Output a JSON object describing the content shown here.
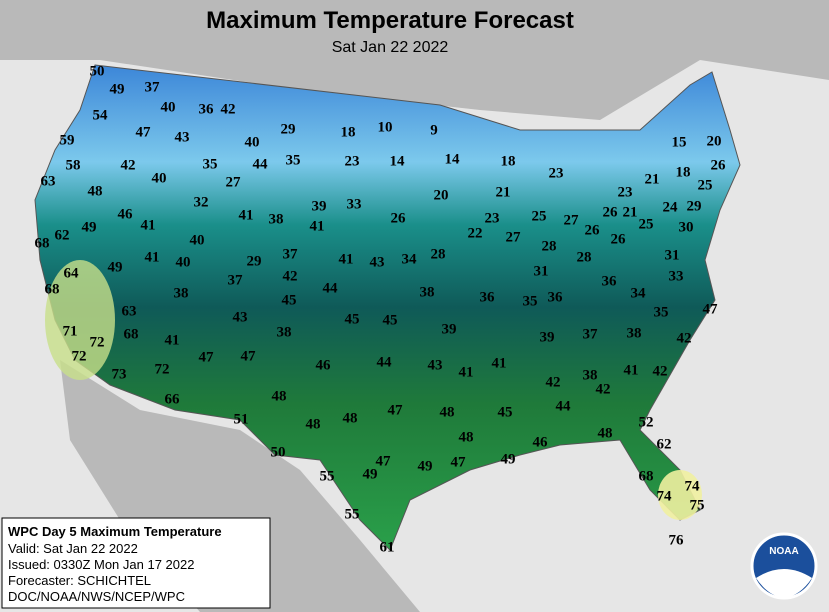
{
  "header": {
    "title": "Maximum Temperature Forecast",
    "subtitle": "Sat Jan 22 2022"
  },
  "temperatures": [
    50,
    49,
    37,
    54,
    40,
    36,
    42,
    47,
    43,
    29,
    18,
    10,
    9,
    40,
    59,
    58,
    42,
    35,
    44,
    35,
    23,
    14,
    14,
    18,
    23,
    15,
    20,
    63,
    40,
    27,
    21,
    18,
    26,
    25,
    48,
    32,
    20,
    21,
    23,
    46,
    41,
    41,
    38,
    39,
    33,
    26,
    23,
    25,
    27,
    26,
    21,
    25,
    24,
    29,
    49,
    41,
    30,
    62,
    68,
    40,
    22,
    27,
    26,
    26,
    28,
    29,
    37,
    41,
    43,
    34,
    28,
    28,
    31,
    49,
    41,
    40,
    64,
    42,
    37,
    31,
    36,
    33,
    68,
    38,
    44,
    38,
    36,
    35,
    36,
    34,
    45,
    63,
    43,
    45,
    45,
    35,
    47,
    71,
    68,
    72,
    41,
    38,
    39,
    39,
    37,
    38,
    42,
    72,
    47,
    47,
    46,
    44,
    43,
    41,
    41,
    41,
    42,
    73,
    72,
    42,
    38,
    42,
    66,
    48,
    51,
    44,
    45,
    48,
    48,
    47,
    48,
    52,
    48,
    46,
    48,
    62,
    50,
    47,
    49,
    49,
    47,
    49,
    55,
    68,
    74,
    74,
    75,
    55,
    61,
    76
  ],
  "info_box": {
    "title": "WPC Day 5 Maximum Temperature",
    "lines": [
      "Valid: Sat Jan 22 2022",
      "Issued: 0330Z Mon Jan 17 2022",
      "Forecaster: SCHICHTEL",
      "DOC/NOAA/NWS/NCEP/WPC"
    ]
  },
  "logo": {
    "text": "NOAA"
  }
}
